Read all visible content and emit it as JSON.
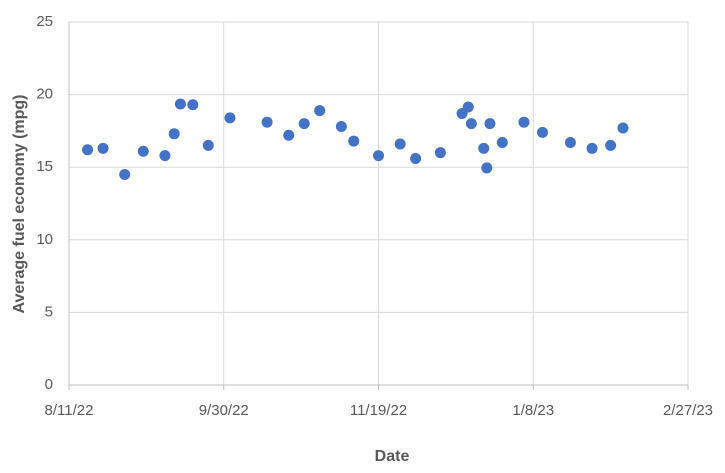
{
  "chart_data": {
    "type": "scatter",
    "x_label": "Date",
    "y_label": "Average fuel economy (mpg)",
    "x": [
      "2022-08-17",
      "2022-08-22",
      "2022-08-29",
      "2022-09-04",
      "2022-09-11",
      "2022-09-14",
      "2022-09-16",
      "2022-09-20",
      "2022-09-25",
      "2022-10-02",
      "2022-10-14",
      "2022-10-21",
      "2022-10-26",
      "2022-10-31",
      "2022-11-07",
      "2022-11-11",
      "2022-11-19",
      "2022-11-26",
      "2022-12-01",
      "2022-12-09",
      "2022-12-16",
      "2022-12-18",
      "2022-12-19",
      "2022-12-23",
      "2022-12-24",
      "2022-12-25",
      "2022-12-29",
      "2023-01-05",
      "2023-01-11",
      "2023-01-20",
      "2023-01-27",
      "2023-02-02",
      "2023-02-06"
    ],
    "values": [
      16.2,
      16.3,
      14.5,
      16.1,
      15.8,
      17.3,
      19.35,
      19.3,
      16.5,
      18.4,
      18.1,
      17.2,
      18.0,
      18.9,
      17.8,
      16.8,
      15.8,
      16.6,
      15.6,
      16.0,
      18.7,
      19.15,
      18.0,
      16.3,
      14.95,
      18.0,
      16.7,
      18.1,
      17.4,
      16.7,
      16.3,
      16.5,
      17.7
    ],
    "color": "#4472c4",
    "xlim": [
      "2022-08-11",
      "2023-02-27"
    ],
    "xticks": [
      {
        "value": "2022-08-11",
        "label": "8/11/22"
      },
      {
        "value": "2022-09-30",
        "label": "9/30/22"
      },
      {
        "value": "2022-11-19",
        "label": "11/19/22"
      },
      {
        "value": "2023-01-08",
        "label": "1/8/23"
      },
      {
        "value": "2023-02-27",
        "label": "2/27/23"
      }
    ],
    "ylim": [
      0,
      25
    ],
    "yticks": [
      0,
      5,
      10,
      15,
      20,
      25
    ],
    "grid": true
  }
}
